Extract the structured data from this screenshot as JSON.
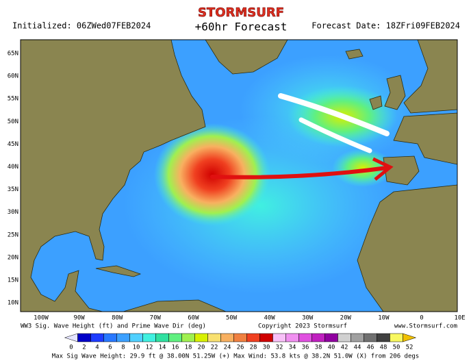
{
  "header": {
    "logo": "STORMSURF",
    "title": "+60hr Forecast",
    "initialized": "Initialized: 06ZWed07FEB2024",
    "forecast_date": "Forecast Date: 18ZFri09FEB2024"
  },
  "lat_labels": [
    "65N",
    "60N",
    "55N",
    "50N",
    "45N",
    "40N",
    "35N",
    "30N",
    "25N",
    "20N",
    "15N",
    "10N"
  ],
  "lon_labels": [
    "100W",
    "90W",
    "80W",
    "70W",
    "60W",
    "50W",
    "40W",
    "30W",
    "20W",
    "10W",
    "0",
    "10E"
  ],
  "caption": {
    "left": "WW3 Sig. Wave Height (ft) and Prime Wave Dir (deg)",
    "center": "Copyright 2023 Stormsurf",
    "right": "www.Stormsurf.com"
  },
  "colorbar": {
    "labels": [
      0,
      2,
      4,
      6,
      8,
      10,
      12,
      14,
      16,
      18,
      20,
      22,
      24,
      26,
      28,
      30,
      32,
      34,
      36,
      38,
      40,
      42,
      44,
      46,
      48,
      50,
      52
    ],
    "colors": [
      "#e4e4ff",
      "#0000c8",
      "#1e3cff",
      "#2878ff",
      "#3ca0ff",
      "#50d0ff",
      "#40f0e0",
      "#30e0a0",
      "#60f080",
      "#a0f050",
      "#d8f000",
      "#f8e070",
      "#f8b060",
      "#f08040",
      "#f04020",
      "#d00000",
      "#f8c0f8",
      "#f090f0",
      "#e050e0",
      "#c020c0",
      "#9000a0",
      "#d0d0d0",
      "#a0a0a0",
      "#707070",
      "#404040",
      "#f8f860",
      "#f0c000"
    ]
  },
  "footer": "Max Sig Wave Height: 29.9 ft @ 38.00N 51.25W (+)   Max Wind: 53.8 kts @ 38.2N 51.0W (X) from 206 degs"
}
